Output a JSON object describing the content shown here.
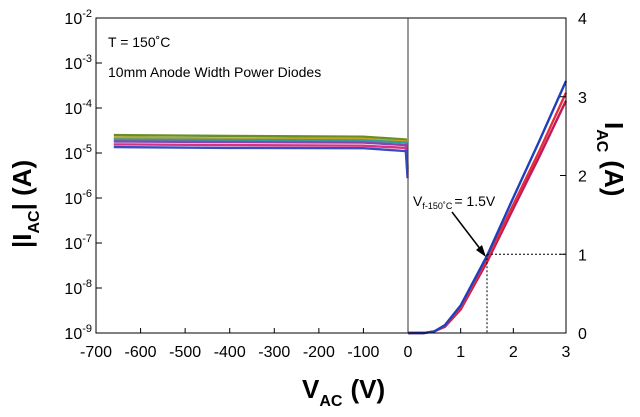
{
  "chart_data": {
    "type": "line",
    "title": "",
    "x_axis": {
      "label_main": "V",
      "label_sub": "AC",
      "label_unit": "(V)",
      "range": [
        -700,
        3
      ],
      "break_at": 0,
      "negative_ticks": [
        "-700",
        "-600",
        "-500",
        "-400",
        "-300",
        "-200",
        "-100",
        "0"
      ],
      "positive_ticks": [
        "1",
        "2",
        "3"
      ]
    },
    "y_left": {
      "label_main": "|I",
      "label_sub": "AC",
      "label_unit": "| (A)",
      "scale": "log",
      "range": [
        1e-09,
        0.01
      ],
      "tick_base": "10",
      "tick_exponents": [
        "-9",
        "-8",
        "-7",
        "-6",
        "-5",
        "-4",
        "-3",
        "-2"
      ]
    },
    "y_right": {
      "label_main": "I",
      "label_sub": "AC",
      "label_unit": "(A)",
      "scale": "linear",
      "range": [
        0,
        4
      ],
      "ticks": [
        "0",
        "1",
        "2",
        "3",
        "4"
      ]
    },
    "annotations": {
      "temperature": "T = 150˚C",
      "device": "10mm Anode Width Power Diodes",
      "vf_main": "V",
      "vf_sub": "f-150˚C",
      "vf_value": "= 1.5V"
    },
    "marker": {
      "x": 1.5,
      "y": 1.0
    },
    "leakage_series": [
      {
        "color": "#6b8e23",
        "x": [
          -660,
          -400,
          -100,
          -5
        ],
        "y": [
          2.5e-05,
          2.4e-05,
          2.3e-05,
          2e-05
        ]
      },
      {
        "color": "#c9a227",
        "x": [
          -660,
          -400,
          -100,
          -5
        ],
        "y": [
          2.2e-05,
          2.1e-05,
          2.05e-05,
          1.8e-05
        ]
      },
      {
        "color": "#2f9e9e",
        "x": [
          -660,
          -400,
          -100,
          -5
        ],
        "y": [
          2e-05,
          1.95e-05,
          1.9e-05,
          1.7e-05
        ]
      },
      {
        "color": "#8e44ad",
        "x": [
          -660,
          -400,
          -100,
          -5
        ],
        "y": [
          1.8e-05,
          1.75e-05,
          1.7e-05,
          1.5e-05
        ]
      },
      {
        "color": "#d63384",
        "x": [
          -660,
          -400,
          -100,
          -5
        ],
        "y": [
          1.55e-05,
          1.5e-05,
          1.45e-05,
          1.3e-05
        ]
      },
      {
        "color": "#3b4cc0",
        "x": [
          -660,
          -400,
          -100,
          -5
        ],
        "y": [
          1.35e-05,
          1.3e-05,
          1.28e-05,
          1.1e-05
        ]
      }
    ],
    "forward_series": [
      {
        "color": "#1f3fbf",
        "x": [
          0,
          0.3,
          0.5,
          0.7,
          1.0,
          1.5,
          2.0,
          2.5,
          3.0
        ],
        "y": [
          0,
          0,
          0.02,
          0.1,
          0.35,
          0.98,
          1.72,
          2.45,
          3.2
        ]
      },
      {
        "color": "#e0303a",
        "x": [
          0,
          0.3,
          0.5,
          0.7,
          1.0,
          1.5,
          2.0,
          2.5,
          3.0
        ],
        "y": [
          0,
          0,
          0.02,
          0.09,
          0.32,
          0.94,
          1.63,
          2.32,
          3.05
        ]
      },
      {
        "color": "#c2185b",
        "x": [
          0,
          0.3,
          0.5,
          0.7,
          1.0,
          1.5,
          2.0,
          2.5,
          3.0
        ],
        "y": [
          0,
          0,
          0.02,
          0.08,
          0.3,
          0.9,
          1.58,
          2.25,
          2.95
        ]
      }
    ]
  }
}
